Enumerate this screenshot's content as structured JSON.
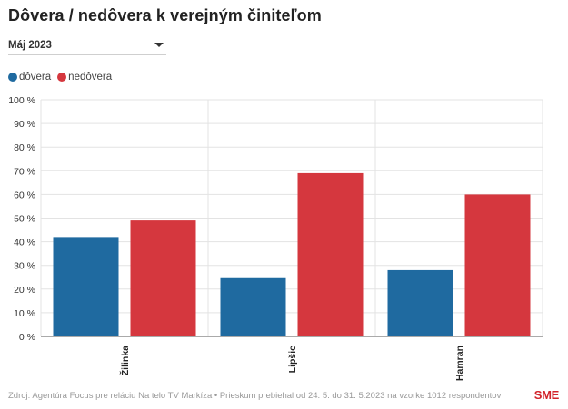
{
  "header": {
    "title": "Dôvera / nedôvera k verejným činiteľom"
  },
  "filter": {
    "selected": "Máj 2023"
  },
  "colors": {
    "dovera": "#1f6aa0",
    "nedovera": "#d5373e"
  },
  "chart_data": {
    "type": "bar",
    "categories": [
      "Žilinka",
      "Lipšic",
      "Hamran"
    ],
    "series": [
      {
        "name": "dôvera",
        "values": [
          42,
          25,
          28
        ]
      },
      {
        "name": "nedôvera",
        "values": [
          49,
          69,
          60
        ]
      }
    ],
    "y_ticks": [
      "0 %",
      "10 %",
      "20 %",
      "30 %",
      "40 %",
      "50 %",
      "60 %",
      "70 %",
      "80 %",
      "90 %",
      "100 %"
    ],
    "ylim": [
      0,
      100
    ],
    "grid": true,
    "legend_position": "top-left"
  },
  "footer": {
    "source": "Zdroj: Agentúra Focus pre reláciu Na telo TV Markíza • Prieskum prebiehal od 24. 5. do 31. 5.2023 na vzorke 1012 respondentov",
    "brand": "SME"
  }
}
